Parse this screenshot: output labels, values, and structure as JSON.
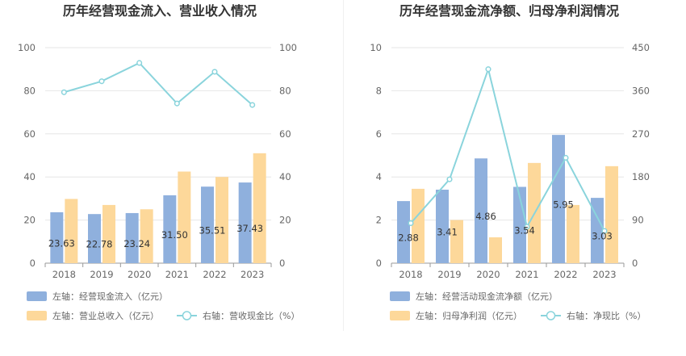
{
  "charts": [
    {
      "title": "历年经营现金流入、营业收入情况",
      "categories": [
        "2018",
        "2019",
        "2020",
        "2021",
        "2022",
        "2023"
      ],
      "left_axis": {
        "min": 0,
        "max": 100,
        "ticks": [
          0,
          20,
          40,
          60,
          80,
          100
        ]
      },
      "right_axis": {
        "min": 0,
        "max": 100,
        "ticks": [
          0,
          20,
          40,
          60,
          80,
          100
        ]
      },
      "series": [
        {
          "name": "左轴：经营现金流入（亿元）",
          "type": "bar",
          "axis": "left",
          "color": "#8fb0dd",
          "values": [
            23.63,
            22.78,
            23.24,
            31.5,
            35.51,
            37.43
          ],
          "labels": [
            "23.63",
            "22.78",
            "23.24",
            "31.50",
            "35.51",
            "37.43"
          ]
        },
        {
          "name": "左轴：营业总收入（亿元）",
          "type": "bar",
          "axis": "left",
          "color": "#fdd89a",
          "values": [
            29.8,
            27.0,
            25.0,
            42.5,
            40.0,
            51.0
          ]
        },
        {
          "name": "右轴：营收现金比（%）",
          "type": "line",
          "axis": "right",
          "color": "#8ad4dc",
          "values": [
            79.3,
            84.4,
            92.9,
            74.1,
            88.8,
            73.4
          ]
        }
      ]
    },
    {
      "title": "历年经营现金流净额、归母净利润情况",
      "categories": [
        "2018",
        "2019",
        "2020",
        "2021",
        "2022",
        "2023"
      ],
      "left_axis": {
        "min": 0,
        "max": 10,
        "ticks": [
          0,
          2,
          4,
          6,
          8,
          10
        ]
      },
      "right_axis": {
        "min": 0,
        "max": 450,
        "ticks": [
          0,
          90,
          180,
          270,
          360,
          450
        ]
      },
      "series": [
        {
          "name": "左轴：经营活动现金流净额（亿元）",
          "type": "bar",
          "axis": "left",
          "color": "#8fb0dd",
          "values": [
            2.88,
            3.41,
            4.86,
            3.54,
            5.95,
            3.03
          ],
          "labels": [
            "2.88",
            "3.41",
            "4.86",
            "3.54",
            "5.95",
            "3.03"
          ]
        },
        {
          "name": "左轴：归母净利润（亿元）",
          "type": "bar",
          "axis": "left",
          "color": "#fdd89a",
          "values": [
            3.45,
            2.0,
            1.2,
            4.65,
            2.7,
            4.5
          ]
        },
        {
          "name": "右轴：净现比（%）",
          "type": "line",
          "axis": "right",
          "color": "#8ad4dc",
          "values": [
            83.5,
            175.0,
            405.0,
            76.1,
            220.0,
            67.3
          ]
        }
      ]
    }
  ]
}
